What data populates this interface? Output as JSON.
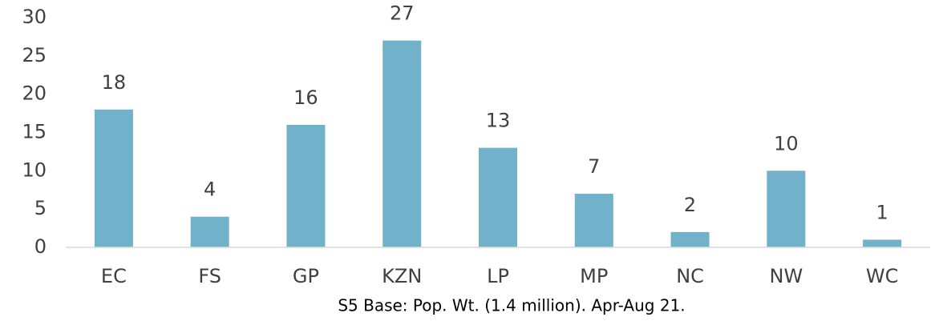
{
  "chart_data": {
    "type": "bar",
    "categories": [
      "EC",
      "FS",
      "GP",
      "KZN",
      "LP",
      "MP",
      "NC",
      "NW",
      "WC"
    ],
    "values": [
      18,
      4,
      16,
      27,
      13,
      7,
      2,
      10,
      1
    ],
    "color": "#71b1c9",
    "x_label": "S5 Base: Pop. Wt. (1.4 million). Apr-Aug 21.",
    "ylim": [
      0,
      30
    ],
    "yticks": [
      0,
      5,
      10,
      15,
      20,
      25,
      30
    ],
    "grid": false
  }
}
